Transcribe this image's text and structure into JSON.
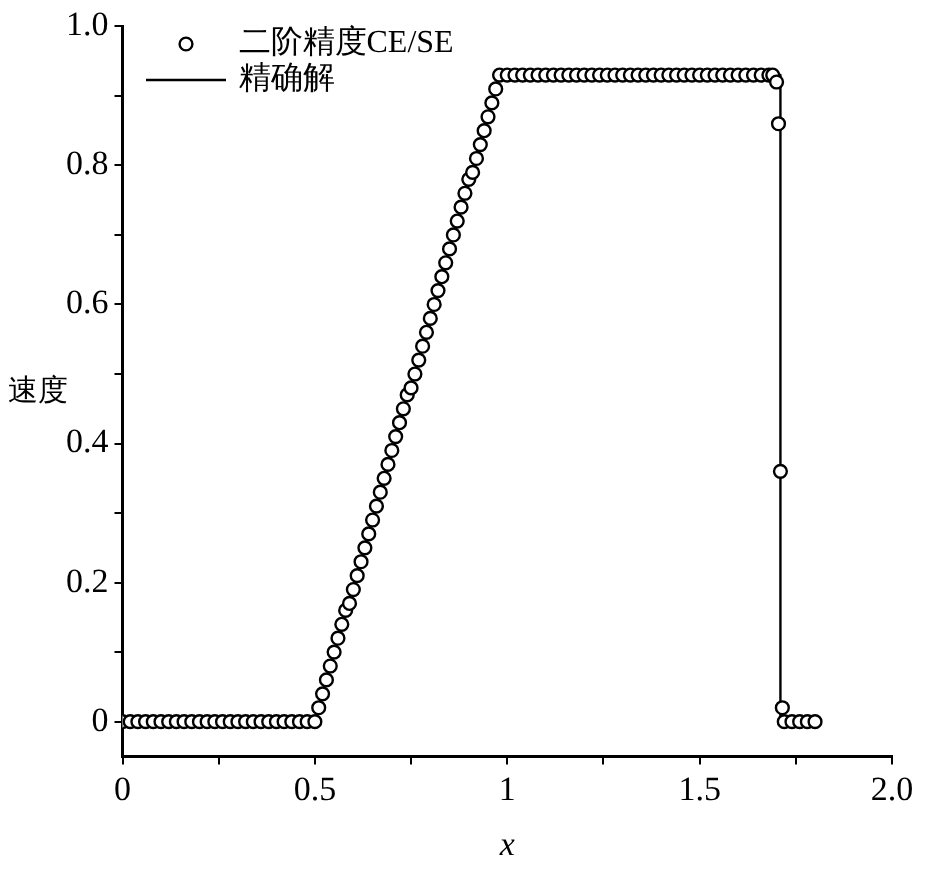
{
  "chart_data": {
    "type": "scatter",
    "xlabel": "x",
    "ylabel": "速度",
    "legend": "top left",
    "grid": false,
    "xlim": [
      0,
      2
    ],
    "xticks": [
      0,
      {
        "value": 0.25,
        "label": null
      },
      0.5,
      {
        "value": 0.75,
        "label": null
      },
      1,
      {
        "value": 1.25,
        "label": null
      },
      1.5,
      {
        "value": 1.75,
        "label": null
      },
      {
        "value": 2,
        "label": "2.0"
      }
    ],
    "ylim": [
      -0.05,
      1
    ],
    "yticks": [
      0,
      {
        "value": 0.1,
        "label": null
      },
      0.2,
      {
        "value": 0.3,
        "label": null
      },
      0.4,
      {
        "value": 0.5,
        "label": null
      },
      0.6,
      {
        "value": 0.7,
        "label": null
      },
      0.8,
      {
        "value": 0.9,
        "label": null
      },
      {
        "value": 1,
        "label": "1.0"
      }
    ],
    "series": [
      {
        "name": "二阶精度CE/SE",
        "type": "scatter",
        "marker": "circle",
        "color": "#000000",
        "x": [
          0,
          0.02,
          0.04,
          0.06,
          0.08,
          0.1,
          0.12,
          0.14,
          0.16,
          0.18,
          0.2,
          0.22,
          0.24,
          0.26,
          0.28,
          0.3,
          0.32,
          0.34,
          0.36,
          0.38,
          0.4,
          0.42,
          0.44,
          0.46,
          0.48,
          0.5,
          0.51,
          0.52,
          0.53,
          0.54,
          0.55,
          0.56,
          0.57,
          0.58,
          0.59,
          0.6,
          0.61,
          0.62,
          0.63,
          0.64,
          0.65,
          0.66,
          0.67,
          0.68,
          0.69,
          0.7,
          0.71,
          0.72,
          0.73,
          0.74,
          0.75,
          0.76,
          0.77,
          0.78,
          0.79,
          0.8,
          0.81,
          0.82,
          0.83,
          0.84,
          0.85,
          0.86,
          0.87,
          0.88,
          0.89,
          0.9,
          0.91,
          0.92,
          0.93,
          0.94,
          0.95,
          0.96,
          0.97,
          0.98,
          1,
          1.02,
          1.04,
          1.06,
          1.08,
          1.1,
          1.12,
          1.14,
          1.16,
          1.18,
          1.2,
          1.22,
          1.24,
          1.26,
          1.28,
          1.3,
          1.32,
          1.34,
          1.36,
          1.38,
          1.4,
          1.42,
          1.44,
          1.46,
          1.48,
          1.5,
          1.52,
          1.54,
          1.56,
          1.58,
          1.6,
          1.62,
          1.64,
          1.66,
          1.68,
          1.69,
          1.7,
          1.705,
          1.71,
          1.715,
          1.72,
          1.74,
          1.76,
          1.78,
          1.8
        ],
        "values": [
          0,
          0,
          0,
          0,
          0,
          0,
          0,
          0,
          0,
          0,
          0,
          0,
          0,
          0,
          0,
          0,
          0,
          0,
          0,
          0,
          0,
          0,
          0,
          0,
          0,
          0,
          0.02,
          0.04,
          0.06,
          0.08,
          0.1,
          0.12,
          0.14,
          0.16,
          0.17,
          0.19,
          0.21,
          0.23,
          0.25,
          0.27,
          0.29,
          0.31,
          0.33,
          0.35,
          0.37,
          0.39,
          0.41,
          0.43,
          0.45,
          0.47,
          0.48,
          0.5,
          0.52,
          0.54,
          0.56,
          0.58,
          0.6,
          0.62,
          0.64,
          0.66,
          0.68,
          0.7,
          0.72,
          0.74,
          0.76,
          0.78,
          0.79,
          0.81,
          0.83,
          0.85,
          0.87,
          0.89,
          0.91,
          0.93,
          0.93,
          0.93,
          0.93,
          0.93,
          0.93,
          0.93,
          0.93,
          0.93,
          0.93,
          0.93,
          0.93,
          0.93,
          0.93,
          0.93,
          0.93,
          0.93,
          0.93,
          0.93,
          0.93,
          0.93,
          0.93,
          0.93,
          0.93,
          0.93,
          0.93,
          0.93,
          0.93,
          0.93,
          0.93,
          0.93,
          0.93,
          0.93,
          0.93,
          0.93,
          0.93,
          0.93,
          0.92,
          0.86,
          0.36,
          0.02,
          0,
          0,
          0,
          0,
          0
        ]
      },
      {
        "name": "精确解",
        "type": "line",
        "marker": "none",
        "line_style": "solid",
        "color": "#000000",
        "x": [
          0,
          0.5,
          0.98,
          1.71,
          1.71,
          1.8
        ],
        "values": [
          0,
          0,
          0.93,
          0.93,
          0,
          0
        ]
      }
    ]
  }
}
